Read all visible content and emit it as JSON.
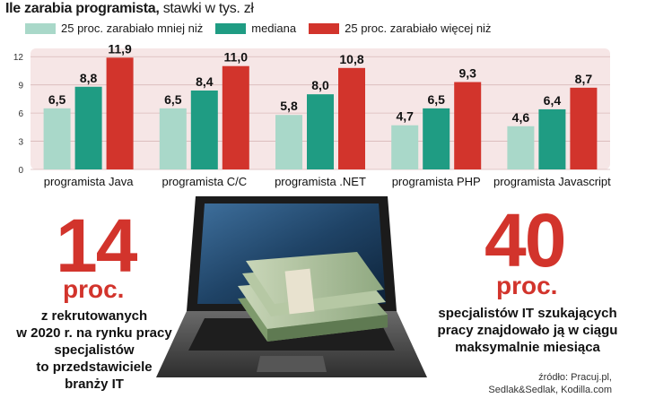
{
  "header": {
    "title_bold": "Ile zarabia programista,",
    "title_rest": " stawki w tys. zł"
  },
  "legend": [
    {
      "label": "25 proc. zarabiało mniej niż",
      "color": "#a9d8c9"
    },
    {
      "label": "mediana",
      "color": "#1f9c83"
    },
    {
      "label": "25 proc. zarabiało więcej niż",
      "color": "#d2342c"
    }
  ],
  "chart_data": {
    "type": "bar",
    "categories": [
      "programista Java",
      "programista C/C",
      "programista .NET",
      "programista PHP",
      "programista Javascript"
    ],
    "series": [
      {
        "name": "25 proc. zarabiało mniej niż",
        "values": [
          6.5,
          6.5,
          5.8,
          4.7,
          4.6
        ]
      },
      {
        "name": "mediana",
        "values": [
          8.8,
          8.4,
          8.0,
          6.5,
          6.4
        ]
      },
      {
        "name": "25 proc. zarabiało więcej niż",
        "values": [
          11.9,
          11.0,
          10.8,
          9.3,
          8.7
        ]
      }
    ],
    "value_labels": [
      [
        "6,5",
        "8,8",
        "11,9"
      ],
      [
        "6,5",
        "8,4",
        "11,0"
      ],
      [
        "5,8",
        "8,0",
        "10,8"
      ],
      [
        "4,7",
        "6,5",
        "9,3"
      ],
      [
        "4,6",
        "6,4",
        "8,7"
      ]
    ],
    "yticks": [
      0,
      3,
      6,
      9,
      12
    ],
    "ylim": [
      0,
      12.5
    ],
    "grid": true,
    "colors": [
      "#a9d8c9",
      "#1f9c83",
      "#d2342c"
    ],
    "background": "#f6e6e6"
  },
  "stat_left": {
    "number": "14",
    "unit": "proc.",
    "caption": "z rekrutowanych\nw 2020 r. na rynku pracy\nspecjalistów\nto przedstawiciele\nbranży IT"
  },
  "stat_right": {
    "number": "40",
    "unit": "proc.",
    "caption": "specjalistów IT szukających\npracy znajdowało ją w ciągu\nmaksymalnie miesiąca"
  },
  "source": "źródło: Pracuj.pl,\nSedlak&Sedlak, Kodilla.com",
  "accent_color": "#d2342c"
}
